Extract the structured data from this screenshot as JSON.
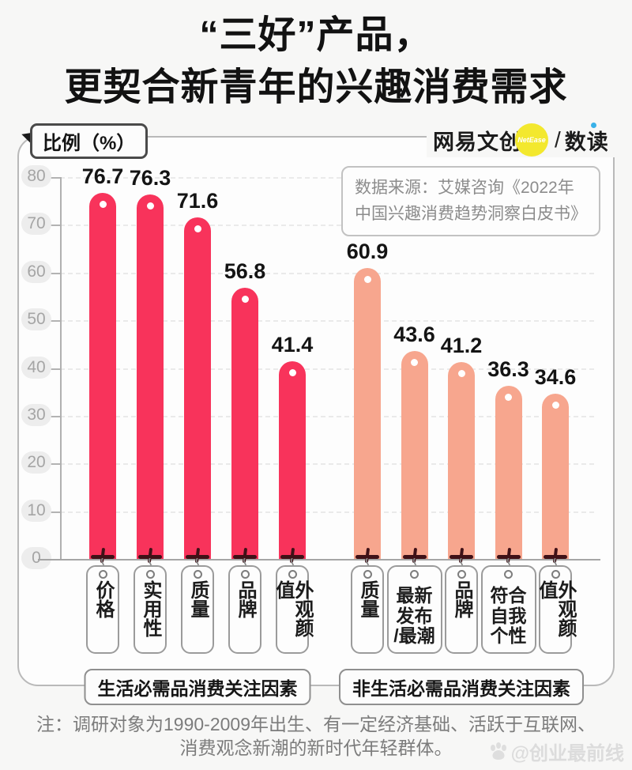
{
  "page": {
    "title_line1": "“三好”产品，",
    "title_line2": "更契合新青年的兴趣消费需求",
    "note_line1": "注：调研对象为1990-2009年出生、有一定经济基础、活跃于互联网、",
    "note_line2": "消费观念新潮的新时代年轻群体。",
    "watermark": "@创业最前线"
  },
  "header": {
    "y_axis_label": "比例（%）",
    "brand": {
      "name": "网易文创",
      "badge": "NetEase",
      "divider": "/",
      "sub": "数读"
    },
    "source": "数据来源：艾媒咨询《2022年\n中国兴趣消费趋势洞察白皮书》"
  },
  "chart_data": {
    "type": "bar",
    "title": "“三好”产品，更契合新青年的兴趣消费需求",
    "ylabel": "比例（%）",
    "ylim": [
      0,
      80
    ],
    "yticks": [
      0,
      10,
      20,
      30,
      40,
      50,
      60,
      70,
      80
    ],
    "grid": "dashed-horizontal",
    "legend_position": "none",
    "groups": [
      {
        "name": "生活必需品消费关注因素",
        "color": "#F8335B",
        "bars": [
          {
            "label": "价格",
            "value": 76.7
          },
          {
            "label": "实用性",
            "value": 76.3
          },
          {
            "label": "质量",
            "value": 71.6
          },
          {
            "label": "品牌",
            "value": 56.8
          },
          {
            "label": "外观颜值",
            "value": 41.4
          }
        ]
      },
      {
        "name": "非生活必需品消费关注因素",
        "color": "#F7A68E",
        "bars": [
          {
            "label": "质量",
            "value": 60.9
          },
          {
            "label": "最新发布/最潮",
            "value": 43.6,
            "lines": "最新\n发布\n/最潮",
            "wide": true
          },
          {
            "label": "品牌",
            "value": 41.2
          },
          {
            "label": "符合自我个性",
            "value": 36.3,
            "lines": "符合\n自我\n个性",
            "wide": true
          },
          {
            "label": "外观颜值",
            "value": 34.6
          }
        ]
      }
    ]
  }
}
